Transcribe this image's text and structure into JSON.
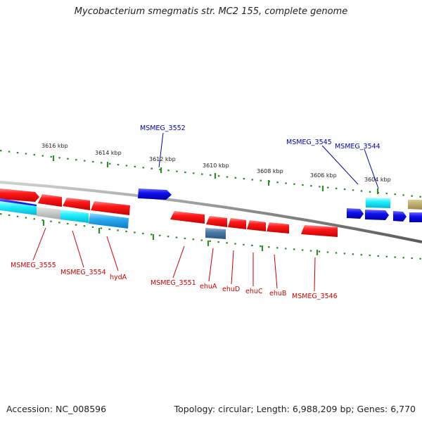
{
  "title": "Mycobacterium smegmatis str. MC2 155, complete genome",
  "footer": {
    "accession": "Accession: NC_008596",
    "summary": "Topology: circular; Length: 6,988,209 bp; Genes: 6,770"
  },
  "colors": {
    "tick": "#2e8b2e",
    "forward_label": "#0000aa",
    "reverse_label": "#cc0000",
    "backbone": "#8a8a8a"
  },
  "scale_labels": [
    {
      "text": "3616 kbp"
    },
    {
      "text": "3614 kbp"
    },
    {
      "text": "3612 kbp"
    },
    {
      "text": "3610 kbp"
    },
    {
      "text": "3608 kbp"
    },
    {
      "text": "3606 kbp"
    },
    {
      "text": "3604 kbp"
    }
  ],
  "gene_labels": {
    "forward": [
      "MSMEG_3552",
      "MSMEG_3545",
      "MSMEG_3544"
    ],
    "reverse": [
      "MSMEG_3555",
      "MSMEG_3554",
      "hydA",
      "MSMEG_3551",
      "ehuA",
      "ehuD",
      "ehuC",
      "ehuB",
      "MSMEG_3546"
    ]
  }
}
